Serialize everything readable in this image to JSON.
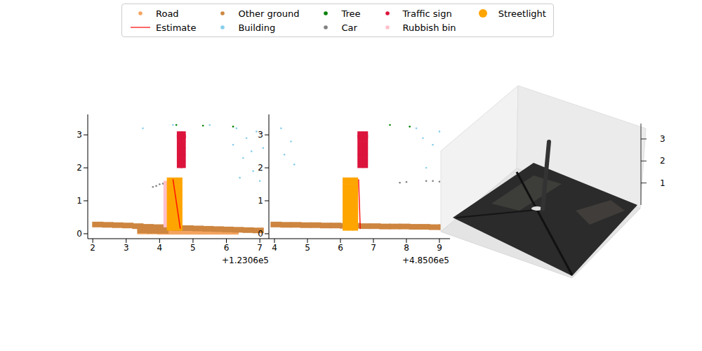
{
  "chart_data": [
    {
      "type": "scatter",
      "legend": "upper center",
      "offset_text": "+1.2306e5",
      "xlim": [
        1.85,
        7.27
      ],
      "xticks": [
        2,
        3,
        4,
        5,
        6,
        7
      ],
      "ylim": [
        -0.15,
        3.62
      ],
      "yticks": [
        0,
        1,
        2,
        3
      ],
      "series": [
        {
          "name": "Road",
          "color": "#f4a460",
          "marker": "dash",
          "points": [
            [
              3.5,
              0.07
            ],
            [
              3.8,
              0.07
            ],
            [
              4.1,
              0.06
            ],
            [
              4.4,
              0.06
            ],
            [
              4.7,
              0.06
            ],
            [
              5.0,
              0.06
            ],
            [
              5.3,
              0.06
            ],
            [
              5.6,
              0.06
            ],
            [
              5.9,
              0.06
            ],
            [
              6.2,
              0.06
            ]
          ]
        },
        {
          "name": "Estimate",
          "color": "#ff0000",
          "marker": "line",
          "points": [
            [
              4.62,
              0.15
            ],
            [
              4.4,
              1.65
            ]
          ]
        },
        {
          "name": "Other ground",
          "color": "#cd853f",
          "marker": "dash",
          "points": [
            [
              2.15,
              0.28
            ],
            [
              2.45,
              0.27
            ],
            [
              2.75,
              0.26
            ],
            [
              3.05,
              0.25
            ],
            [
              3.35,
              0.23
            ],
            [
              3.65,
              0.21
            ],
            [
              3.95,
              0.2
            ],
            [
              4.25,
              0.18
            ],
            [
              4.55,
              0.17
            ],
            [
              4.85,
              0.17
            ],
            [
              5.15,
              0.16
            ],
            [
              5.45,
              0.15
            ],
            [
              5.75,
              0.14
            ],
            [
              6.05,
              0.13
            ],
            [
              6.35,
              0.12
            ],
            [
              6.65,
              0.11
            ],
            [
              6.95,
              0.1
            ],
            [
              3.5,
              0.1
            ],
            [
              3.8,
              0.09
            ],
            [
              4.1,
              0.09
            ]
          ]
        },
        {
          "name": "Building",
          "color": "#87ceeb",
          "marker": "point",
          "points": [
            [
              6.3,
              3.2
            ],
            [
              6.6,
              2.9
            ],
            [
              6.9,
              3.1
            ],
            [
              7.1,
              2.6
            ],
            [
              6.5,
              2.3
            ],
            [
              6.8,
              1.9
            ],
            [
              7.0,
              1.6
            ],
            [
              6.2,
              2.7
            ],
            [
              4.4,
              3.3
            ],
            [
              5.5,
              3.3
            ],
            [
              3.5,
              3.2
            ],
            [
              6.4,
              1.7
            ],
            [
              6.75,
              2.5
            ]
          ]
        },
        {
          "name": "Tree",
          "color": "#008000",
          "marker": "point",
          "points": [
            [
              5.3,
              3.28
            ],
            [
              6.2,
              3.25
            ],
            [
              4.5,
              3.3
            ]
          ]
        },
        {
          "name": "Car",
          "color": "#808080",
          "marker": "point",
          "points": [
            [
              3.8,
              1.42
            ],
            [
              3.9,
              1.45
            ],
            [
              4.0,
              1.5
            ],
            [
              4.1,
              1.52
            ],
            [
              4.2,
              1.55
            ],
            [
              4.3,
              1.57
            ]
          ]
        },
        {
          "name": "Traffic sign",
          "color": "#dc143c",
          "marker": "square",
          "points": [
            [
              4.6,
              2.1
            ],
            [
              4.6,
              2.3
            ],
            [
              4.6,
              2.5
            ],
            [
              4.6,
              2.7
            ],
            [
              4.6,
              2.9
            ],
            [
              4.6,
              3.0
            ],
            [
              4.7,
              2.1
            ],
            [
              4.7,
              2.3
            ],
            [
              4.7,
              2.5
            ],
            [
              4.7,
              2.7
            ],
            [
              4.7,
              2.9
            ],
            [
              4.7,
              3.0
            ]
          ]
        },
        {
          "name": "Rubbish bin",
          "color": "#ffc0cb",
          "marker": "square",
          "points": [
            [
              4.2,
              0.3
            ],
            [
              4.2,
              0.5
            ],
            [
              4.2,
              0.7
            ],
            [
              4.2,
              0.9
            ],
            [
              4.2,
              1.1
            ],
            [
              4.2,
              1.3
            ],
            [
              4.2,
              1.5
            ]
          ]
        },
        {
          "name": "Streetlight",
          "color": "#ffa500",
          "marker": "big",
          "points": [
            [
              4.3,
              0.2
            ],
            [
              4.3,
              0.4
            ],
            [
              4.3,
              0.6
            ],
            [
              4.3,
              0.8
            ],
            [
              4.3,
              1.0
            ],
            [
              4.3,
              1.2
            ],
            [
              4.3,
              1.4
            ],
            [
              4.3,
              1.6
            ],
            [
              4.45,
              0.2
            ],
            [
              4.45,
              0.4
            ],
            [
              4.45,
              0.6
            ],
            [
              4.45,
              0.8
            ],
            [
              4.45,
              1.0
            ],
            [
              4.45,
              1.2
            ],
            [
              4.45,
              1.4
            ],
            [
              4.45,
              1.6
            ],
            [
              4.6,
              0.2
            ],
            [
              4.6,
              0.4
            ],
            [
              4.6,
              0.6
            ],
            [
              4.6,
              0.8
            ],
            [
              4.6,
              1.0
            ],
            [
              4.6,
              1.2
            ],
            [
              4.6,
              1.4
            ],
            [
              4.6,
              1.6
            ]
          ]
        }
      ]
    },
    {
      "type": "scatter",
      "offset_text": "+4.8506e5",
      "xlim": [
        3.83,
        9.32
      ],
      "xticks": [
        4,
        5,
        6,
        7,
        8,
        9
      ],
      "ylim": [
        -0.15,
        3.62
      ],
      "yticks": [
        0,
        1,
        2,
        3
      ],
      "series": [
        {
          "name": "Road",
          "color": "#f4a460",
          "marker": "dash",
          "points": []
        },
        {
          "name": "Estimate",
          "color": "#ff0000",
          "marker": "line",
          "points": [
            [
              6.6,
              0.15
            ],
            [
              6.55,
              1.65
            ]
          ]
        },
        {
          "name": "Other ground",
          "color": "#cd853f",
          "marker": "dash",
          "points": [
            [
              4.05,
              0.28
            ],
            [
              4.35,
              0.27
            ],
            [
              4.65,
              0.27
            ],
            [
              4.95,
              0.26
            ],
            [
              5.25,
              0.26
            ],
            [
              5.55,
              0.25
            ],
            [
              5.85,
              0.25
            ],
            [
              6.15,
              0.24
            ],
            [
              6.45,
              0.24
            ],
            [
              6.75,
              0.23
            ],
            [
              7.05,
              0.23
            ],
            [
              7.35,
              0.22
            ],
            [
              7.65,
              0.22
            ],
            [
              7.95,
              0.22
            ],
            [
              8.25,
              0.21
            ],
            [
              8.55,
              0.21
            ],
            [
              8.85,
              0.2
            ],
            [
              9.15,
              0.2
            ]
          ]
        },
        {
          "name": "Building",
          "color": "#87ceeb",
          "marker": "point",
          "points": [
            [
              4.2,
              3.2
            ],
            [
              4.5,
              2.8
            ],
            [
              4.3,
              2.4
            ],
            [
              8.5,
              2.9
            ],
            [
              8.8,
              2.7
            ],
            [
              9.1,
              2.3
            ],
            [
              8.3,
              3.2
            ],
            [
              4.6,
              2.1
            ],
            [
              9.0,
              3.1
            ],
            [
              8.6,
              2.0
            ]
          ]
        },
        {
          "name": "Tree",
          "color": "#008000",
          "marker": "point",
          "points": [
            [
              8.1,
              3.25
            ],
            [
              7.5,
              3.3
            ]
          ]
        },
        {
          "name": "Car",
          "color": "#808080",
          "marker": "point",
          "points": [
            [
              7.8,
              1.55
            ],
            [
              8.0,
              1.57
            ],
            [
              8.6,
              1.6
            ],
            [
              8.8,
              1.6
            ],
            [
              9.0,
              1.58
            ],
            [
              9.2,
              1.55
            ]
          ]
        },
        {
          "name": "Traffic sign",
          "color": "#dc143c",
          "marker": "square",
          "points": [
            [
              6.6,
              2.1
            ],
            [
              6.6,
              2.3
            ],
            [
              6.6,
              2.5
            ],
            [
              6.6,
              2.7
            ],
            [
              6.6,
              2.9
            ],
            [
              6.6,
              3.0
            ],
            [
              6.75,
              2.1
            ],
            [
              6.75,
              2.3
            ],
            [
              6.75,
              2.5
            ],
            [
              6.75,
              2.7
            ],
            [
              6.75,
              2.9
            ],
            [
              6.75,
              3.0
            ]
          ]
        },
        {
          "name": "Rubbish bin",
          "color": "#ffc0cb",
          "marker": "square",
          "points": []
        },
        {
          "name": "Streetlight",
          "color": "#ffa500",
          "marker": "big",
          "points": [
            [
              6.15,
              0.2
            ],
            [
              6.15,
              0.4
            ],
            [
              6.15,
              0.6
            ],
            [
              6.15,
              0.8
            ],
            [
              6.15,
              1.0
            ],
            [
              6.15,
              1.2
            ],
            [
              6.15,
              1.4
            ],
            [
              6.15,
              1.6
            ],
            [
              6.3,
              0.2
            ],
            [
              6.3,
              0.4
            ],
            [
              6.3,
              0.6
            ],
            [
              6.3,
              0.8
            ],
            [
              6.3,
              1.0
            ],
            [
              6.3,
              1.2
            ],
            [
              6.3,
              1.4
            ],
            [
              6.3,
              1.6
            ],
            [
              6.45,
              0.2
            ],
            [
              6.45,
              0.4
            ],
            [
              6.45,
              0.6
            ],
            [
              6.45,
              0.8
            ],
            [
              6.45,
              1.0
            ],
            [
              6.45,
              1.2
            ],
            [
              6.45,
              1.4
            ],
            [
              6.45,
              1.6
            ]
          ]
        }
      ]
    },
    {
      "type": "3d",
      "zlim": [
        0,
        3.7
      ],
      "zticks": [
        1,
        2,
        3
      ]
    }
  ]
}
